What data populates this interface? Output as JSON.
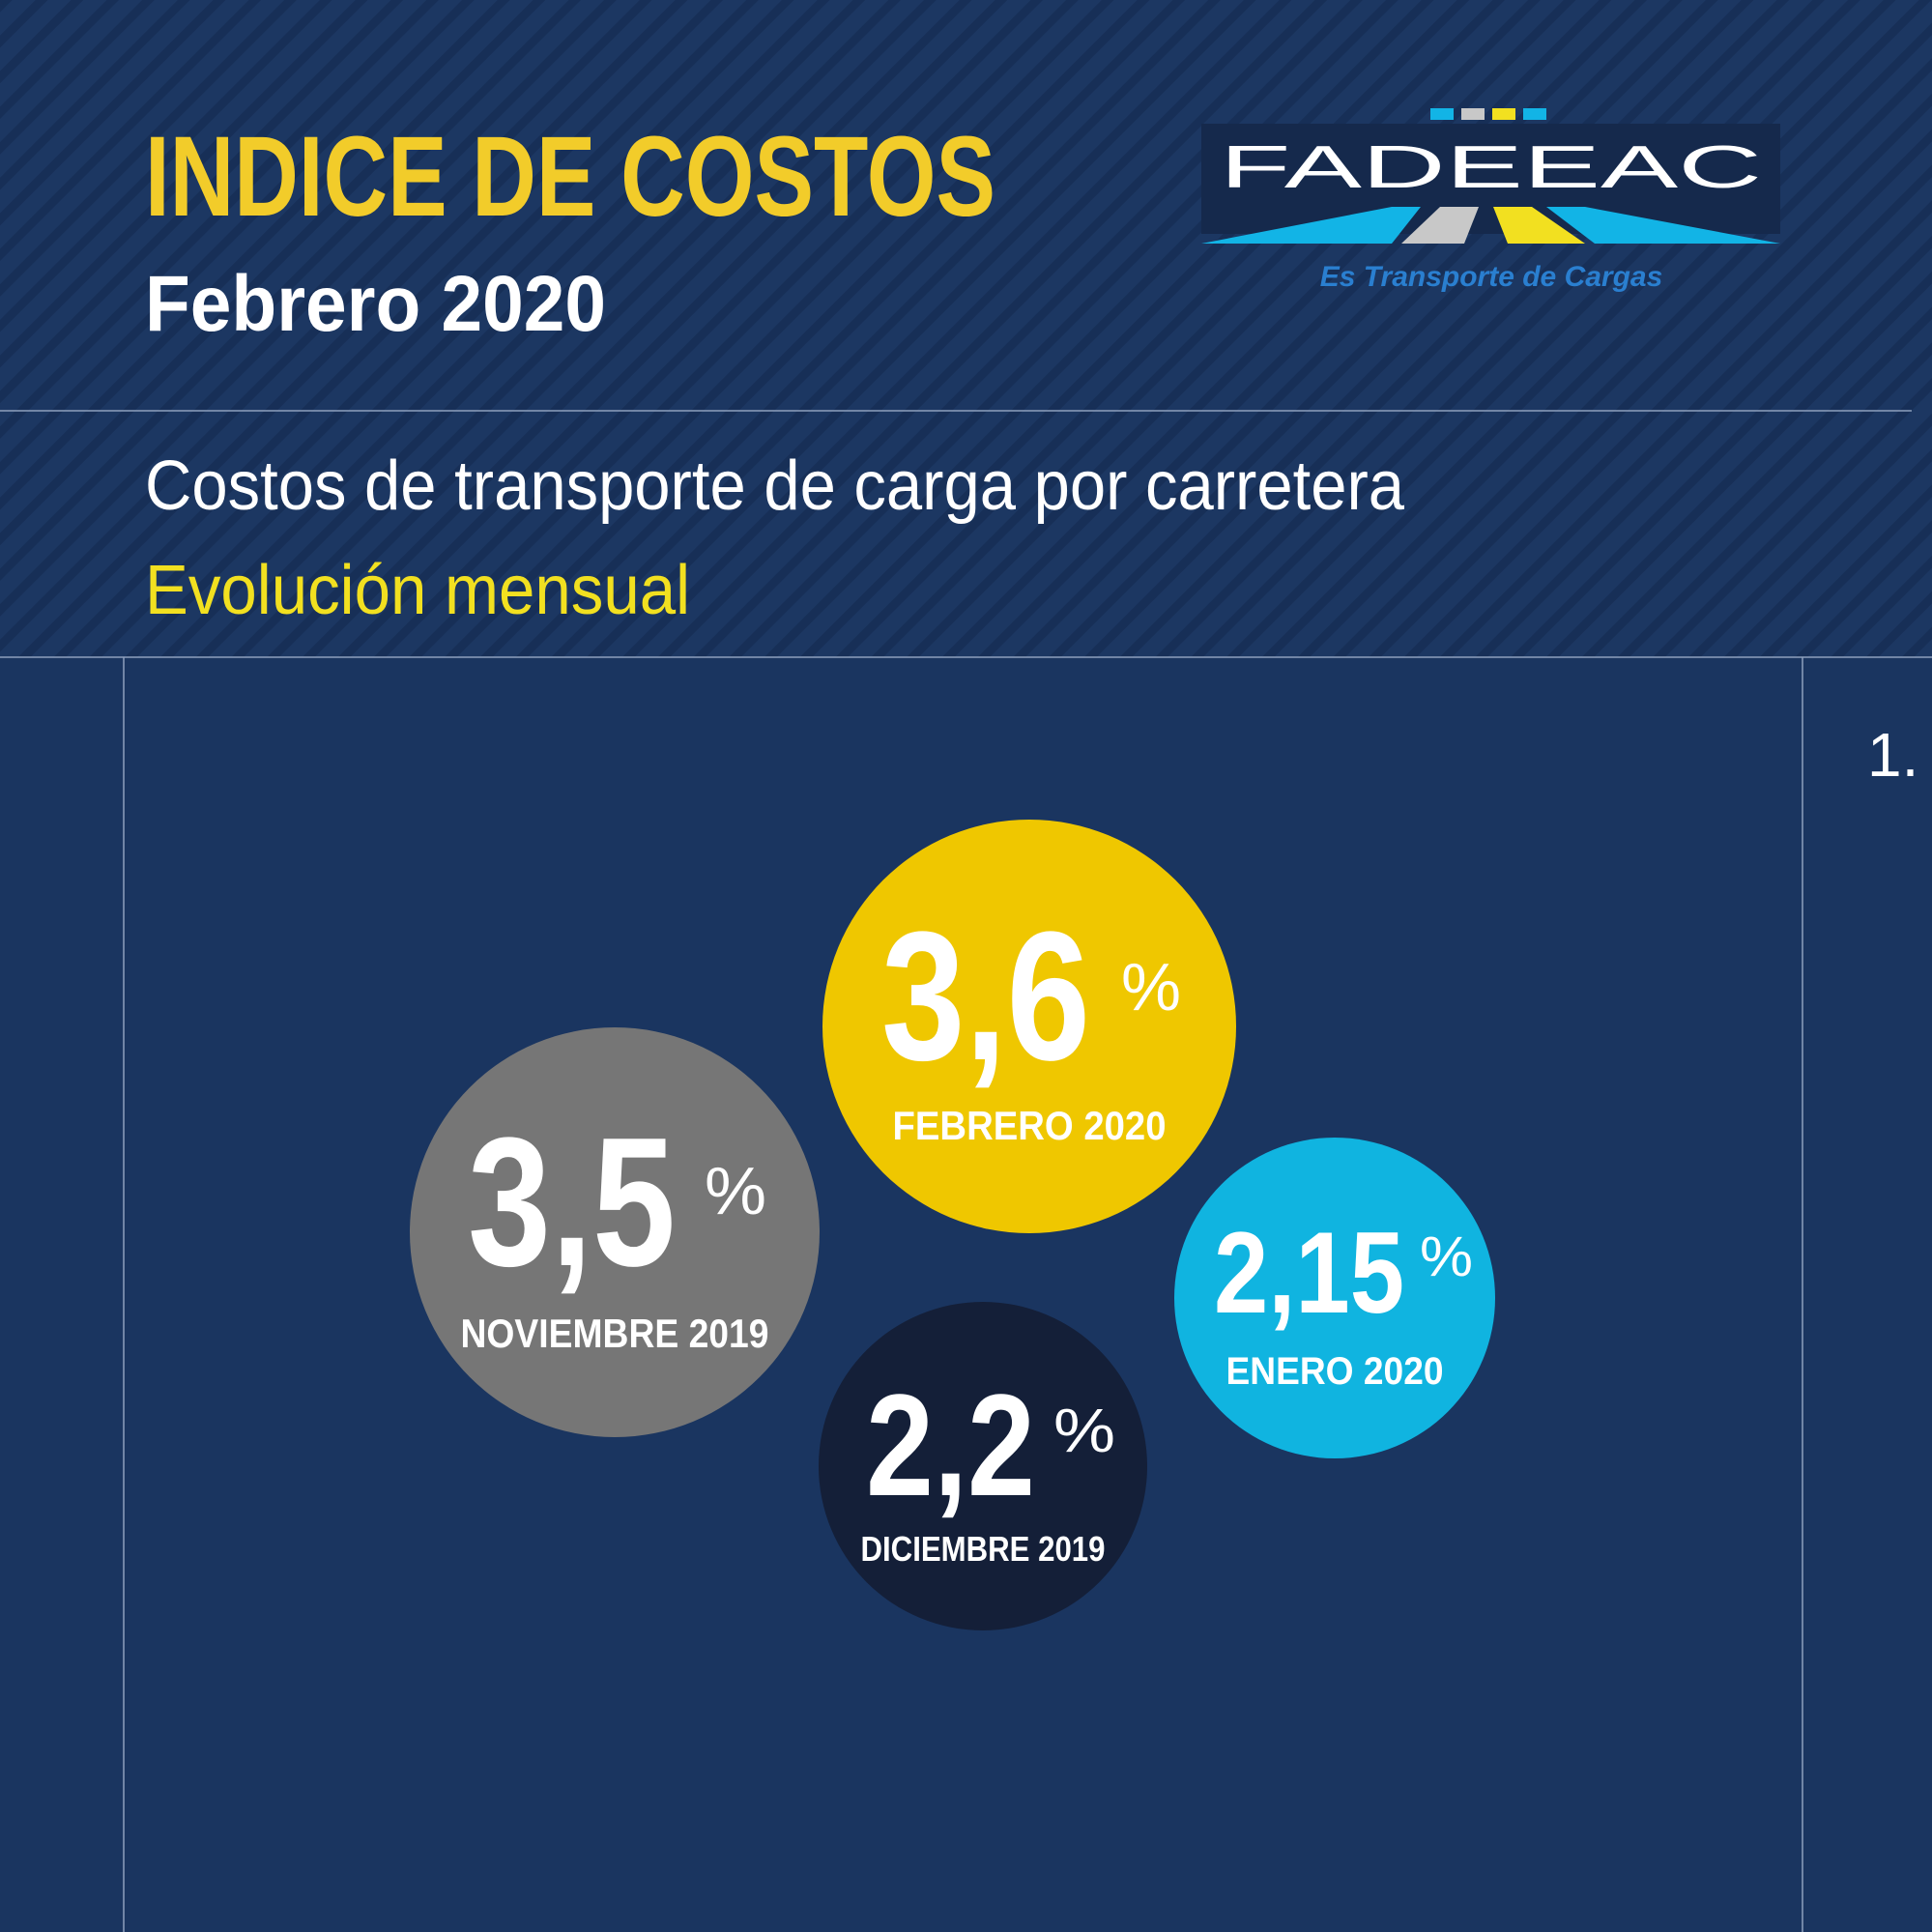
{
  "header": {
    "title": "INDICE DE COSTOS",
    "subtitle": "Febrero 2020"
  },
  "logo": {
    "name": "FADEEAC",
    "tagline": "Es Transporte de Cargas"
  },
  "section": {
    "title": "Costos de transporte de carga por carretera",
    "subtitle": "Evolución mensual"
  },
  "page_marker": "1.",
  "unit": "%",
  "bubbles": [
    {
      "value": "3,6",
      "label": "FEBRERO 2020"
    },
    {
      "value": "3,5",
      "label": "NOVIEMBRE 2019"
    },
    {
      "value": "2,2",
      "label": "DICIEMBRE 2019"
    },
    {
      "value": "2,15",
      "label": "ENERO 2020"
    }
  ]
}
